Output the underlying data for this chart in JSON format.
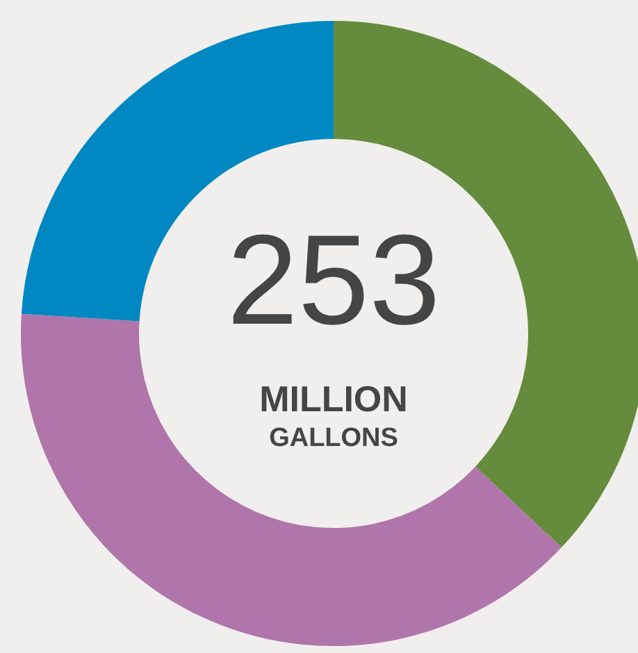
{
  "chart_data": {
    "type": "donut",
    "categories": [
      null,
      null,
      null
    ],
    "values": [
      37,
      39,
      24
    ],
    "colors": [
      "#648c3c",
      "#b075aa",
      "#0088c2"
    ],
    "annotations": [
      "253",
      "MILLION",
      "GALLONS"
    ]
  }
}
